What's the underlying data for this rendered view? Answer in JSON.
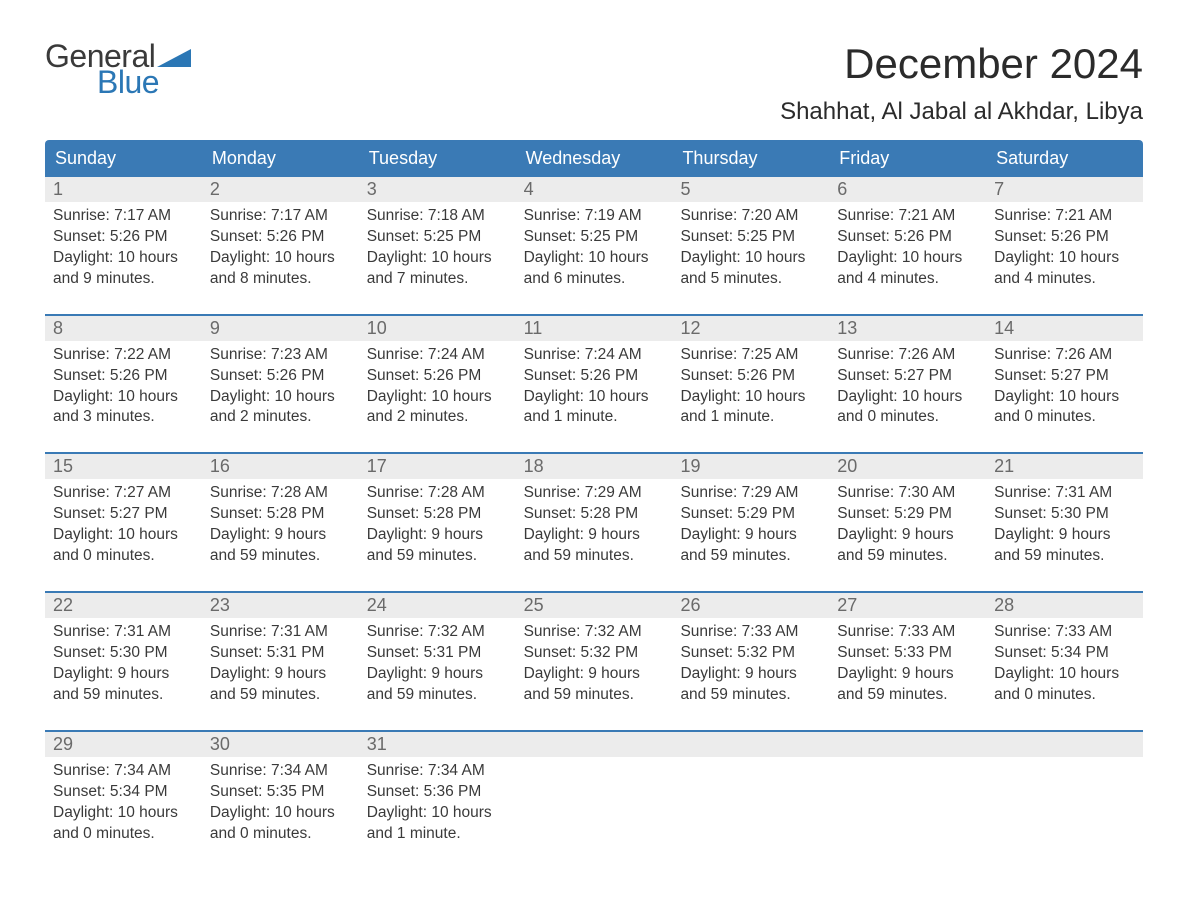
{
  "logo": {
    "text_top": "General",
    "text_bottom": "Blue"
  },
  "title": "December 2024",
  "location": "Shahhat, Al Jabal al Akhdar, Libya",
  "colors": {
    "header_bg": "#3a7ab5",
    "header_text": "#ffffff",
    "daynum_bg": "#ececec",
    "daynum_text": "#6a6a6a",
    "body_text": "#3a3a3a",
    "week_border": "#3a7ab5",
    "logo_gray": "#3a3a3a",
    "logo_blue": "#2b77b5",
    "page_bg": "#ffffff"
  },
  "typography": {
    "title_fontsize": 42,
    "location_fontsize": 24,
    "weekday_fontsize": 18,
    "daynum_fontsize": 18,
    "body_fontsize": 15.5,
    "logo_fontsize": 32
  },
  "weekdays": [
    "Sunday",
    "Monday",
    "Tuesday",
    "Wednesday",
    "Thursday",
    "Friday",
    "Saturday"
  ],
  "weeks": [
    [
      {
        "n": "1",
        "sr": "Sunrise: 7:17 AM",
        "ss": "Sunset: 5:26 PM",
        "d1": "Daylight: 10 hours",
        "d2": "and 9 minutes."
      },
      {
        "n": "2",
        "sr": "Sunrise: 7:17 AM",
        "ss": "Sunset: 5:26 PM",
        "d1": "Daylight: 10 hours",
        "d2": "and 8 minutes."
      },
      {
        "n": "3",
        "sr": "Sunrise: 7:18 AM",
        "ss": "Sunset: 5:25 PM",
        "d1": "Daylight: 10 hours",
        "d2": "and 7 minutes."
      },
      {
        "n": "4",
        "sr": "Sunrise: 7:19 AM",
        "ss": "Sunset: 5:25 PM",
        "d1": "Daylight: 10 hours",
        "d2": "and 6 minutes."
      },
      {
        "n": "5",
        "sr": "Sunrise: 7:20 AM",
        "ss": "Sunset: 5:25 PM",
        "d1": "Daylight: 10 hours",
        "d2": "and 5 minutes."
      },
      {
        "n": "6",
        "sr": "Sunrise: 7:21 AM",
        "ss": "Sunset: 5:26 PM",
        "d1": "Daylight: 10 hours",
        "d2": "and 4 minutes."
      },
      {
        "n": "7",
        "sr": "Sunrise: 7:21 AM",
        "ss": "Sunset: 5:26 PM",
        "d1": "Daylight: 10 hours",
        "d2": "and 4 minutes."
      }
    ],
    [
      {
        "n": "8",
        "sr": "Sunrise: 7:22 AM",
        "ss": "Sunset: 5:26 PM",
        "d1": "Daylight: 10 hours",
        "d2": "and 3 minutes."
      },
      {
        "n": "9",
        "sr": "Sunrise: 7:23 AM",
        "ss": "Sunset: 5:26 PM",
        "d1": "Daylight: 10 hours",
        "d2": "and 2 minutes."
      },
      {
        "n": "10",
        "sr": "Sunrise: 7:24 AM",
        "ss": "Sunset: 5:26 PM",
        "d1": "Daylight: 10 hours",
        "d2": "and 2 minutes."
      },
      {
        "n": "11",
        "sr": "Sunrise: 7:24 AM",
        "ss": "Sunset: 5:26 PM",
        "d1": "Daylight: 10 hours",
        "d2": "and 1 minute."
      },
      {
        "n": "12",
        "sr": "Sunrise: 7:25 AM",
        "ss": "Sunset: 5:26 PM",
        "d1": "Daylight: 10 hours",
        "d2": "and 1 minute."
      },
      {
        "n": "13",
        "sr": "Sunrise: 7:26 AM",
        "ss": "Sunset: 5:27 PM",
        "d1": "Daylight: 10 hours",
        "d2": "and 0 minutes."
      },
      {
        "n": "14",
        "sr": "Sunrise: 7:26 AM",
        "ss": "Sunset: 5:27 PM",
        "d1": "Daylight: 10 hours",
        "d2": "and 0 minutes."
      }
    ],
    [
      {
        "n": "15",
        "sr": "Sunrise: 7:27 AM",
        "ss": "Sunset: 5:27 PM",
        "d1": "Daylight: 10 hours",
        "d2": "and 0 minutes."
      },
      {
        "n": "16",
        "sr": "Sunrise: 7:28 AM",
        "ss": "Sunset: 5:28 PM",
        "d1": "Daylight: 9 hours",
        "d2": "and 59 minutes."
      },
      {
        "n": "17",
        "sr": "Sunrise: 7:28 AM",
        "ss": "Sunset: 5:28 PM",
        "d1": "Daylight: 9 hours",
        "d2": "and 59 minutes."
      },
      {
        "n": "18",
        "sr": "Sunrise: 7:29 AM",
        "ss": "Sunset: 5:28 PM",
        "d1": "Daylight: 9 hours",
        "d2": "and 59 minutes."
      },
      {
        "n": "19",
        "sr": "Sunrise: 7:29 AM",
        "ss": "Sunset: 5:29 PM",
        "d1": "Daylight: 9 hours",
        "d2": "and 59 minutes."
      },
      {
        "n": "20",
        "sr": "Sunrise: 7:30 AM",
        "ss": "Sunset: 5:29 PM",
        "d1": "Daylight: 9 hours",
        "d2": "and 59 minutes."
      },
      {
        "n": "21",
        "sr": "Sunrise: 7:31 AM",
        "ss": "Sunset: 5:30 PM",
        "d1": "Daylight: 9 hours",
        "d2": "and 59 minutes."
      }
    ],
    [
      {
        "n": "22",
        "sr": "Sunrise: 7:31 AM",
        "ss": "Sunset: 5:30 PM",
        "d1": "Daylight: 9 hours",
        "d2": "and 59 minutes."
      },
      {
        "n": "23",
        "sr": "Sunrise: 7:31 AM",
        "ss": "Sunset: 5:31 PM",
        "d1": "Daylight: 9 hours",
        "d2": "and 59 minutes."
      },
      {
        "n": "24",
        "sr": "Sunrise: 7:32 AM",
        "ss": "Sunset: 5:31 PM",
        "d1": "Daylight: 9 hours",
        "d2": "and 59 minutes."
      },
      {
        "n": "25",
        "sr": "Sunrise: 7:32 AM",
        "ss": "Sunset: 5:32 PM",
        "d1": "Daylight: 9 hours",
        "d2": "and 59 minutes."
      },
      {
        "n": "26",
        "sr": "Sunrise: 7:33 AM",
        "ss": "Sunset: 5:32 PM",
        "d1": "Daylight: 9 hours",
        "d2": "and 59 minutes."
      },
      {
        "n": "27",
        "sr": "Sunrise: 7:33 AM",
        "ss": "Sunset: 5:33 PM",
        "d1": "Daylight: 9 hours",
        "d2": "and 59 minutes."
      },
      {
        "n": "28",
        "sr": "Sunrise: 7:33 AM",
        "ss": "Sunset: 5:34 PM",
        "d1": "Daylight: 10 hours",
        "d2": "and 0 minutes."
      }
    ],
    [
      {
        "n": "29",
        "sr": "Sunrise: 7:34 AM",
        "ss": "Sunset: 5:34 PM",
        "d1": "Daylight: 10 hours",
        "d2": "and 0 minutes."
      },
      {
        "n": "30",
        "sr": "Sunrise: 7:34 AM",
        "ss": "Sunset: 5:35 PM",
        "d1": "Daylight: 10 hours",
        "d2": "and 0 minutes."
      },
      {
        "n": "31",
        "sr": "Sunrise: 7:34 AM",
        "ss": "Sunset: 5:36 PM",
        "d1": "Daylight: 10 hours",
        "d2": "and 1 minute."
      },
      null,
      null,
      null,
      null
    ]
  ]
}
